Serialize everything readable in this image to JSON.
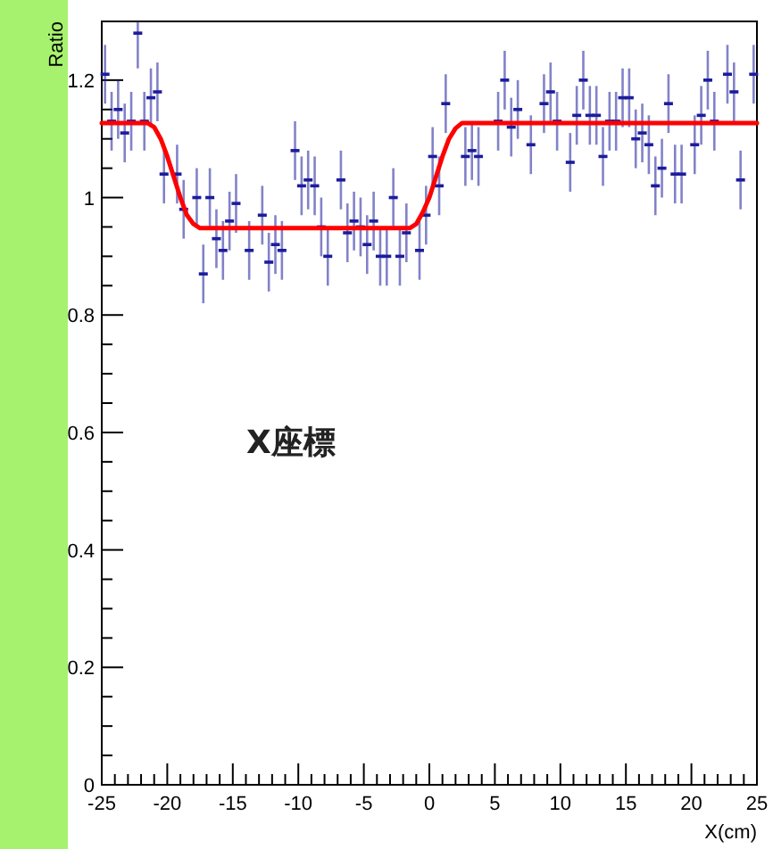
{
  "chart_data": {
    "type": "scatter",
    "xlabel": "X(cm)",
    "ylabel": "Ratio",
    "annotations": [
      "X座標"
    ],
    "xlim": [
      -25,
      25
    ],
    "ylim": [
      0,
      1.3
    ],
    "xticks": [
      -25,
      -20,
      -15,
      -10,
      -5,
      0,
      5,
      10,
      15,
      20,
      25
    ],
    "yticks": [
      0,
      0.2,
      0.4,
      0.6,
      0.8,
      1,
      1.2
    ],
    "grid": false,
    "series": [
      {
        "type": "scatter",
        "color": "#1c1c9c",
        "x": [
          -24.75,
          -24.25,
          -23.75,
          -23.25,
          -22.75,
          -22.25,
          -21.75,
          -21.25,
          -20.75,
          -20.25,
          -19.25,
          -18.75,
          -17.75,
          -17.25,
          -16.75,
          -16.25,
          -15.75,
          -15.25,
          -14.75,
          -13.75,
          -12.75,
          -12.25,
          -11.75,
          -11.25,
          -10.25,
          -9.75,
          -9.25,
          -8.75,
          -8.25,
          -7.75,
          -6.75,
          -6.25,
          -5.75,
          -5.25,
          -4.75,
          -4.25,
          -3.75,
          -3.25,
          -2.75,
          -2.25,
          -1.75,
          -0.75,
          -0.25,
          0.25,
          0.75,
          1.25,
          2.75,
          3.25,
          3.75,
          5.25,
          5.75,
          6.25,
          6.75,
          7.75,
          8.75,
          9.25,
          9.75,
          10.75,
          11.25,
          11.75,
          12.25,
          12.75,
          13.25,
          13.75,
          14.25,
          14.75,
          15.25,
          15.75,
          16.25,
          16.75,
          17.25,
          17.75,
          18.25,
          18.75,
          19.25,
          20.25,
          20.75,
          21.25,
          21.75,
          22.75,
          23.25,
          23.75,
          24.75
        ],
        "values": [
          1.21,
          1.13,
          1.15,
          1.11,
          1.13,
          1.28,
          1.13,
          1.17,
          1.18,
          1.04,
          1.04,
          0.98,
          1.0,
          0.87,
          1.0,
          0.93,
          0.91,
          0.96,
          0.99,
          0.91,
          0.97,
          0.89,
          0.92,
          0.91,
          1.08,
          1.02,
          1.03,
          1.02,
          0.95,
          0.9,
          1.03,
          0.94,
          0.96,
          0.95,
          0.92,
          0.96,
          0.9,
          0.9,
          1.0,
          0.9,
          0.94,
          0.91,
          0.97,
          1.07,
          1.02,
          1.16,
          1.07,
          1.08,
          1.07,
          1.13,
          1.2,
          1.12,
          1.15,
          1.09,
          1.16,
          1.18,
          1.13,
          1.06,
          1.14,
          1.2,
          1.14,
          1.14,
          1.07,
          1.13,
          1.13,
          1.17,
          1.17,
          1.1,
          1.11,
          1.09,
          1.02,
          1.05,
          1.16,
          1.04,
          1.04,
          1.09,
          1.14,
          1.2,
          1.13,
          1.21,
          1.18,
          1.03,
          1.21
        ],
        "errors": [
          0.05,
          0.05,
          0.05,
          0.05,
          0.05,
          [
            1.22,
            1.3
          ],
          0.05,
          0.05,
          0.05,
          0.05,
          0.05,
          0.05,
          0.05,
          0.05,
          0.05,
          0.05,
          0.05,
          0.05,
          0.05,
          0.05,
          0.05,
          0.05,
          0.05,
          0.05,
          0.05,
          0.05,
          0.05,
          0.05,
          0.05,
          0.05,
          0.05,
          0.05,
          0.05,
          0.05,
          0.05,
          0.05,
          0.05,
          0.05,
          0.05,
          0.05,
          0.05,
          0.05,
          0.05,
          0.05,
          0.05,
          0.05,
          0.05,
          0.05,
          0.05,
          0.05,
          0.05,
          0.05,
          0.05,
          0.05,
          0.05,
          0.05,
          0.05,
          0.05,
          0.05,
          0.05,
          0.05,
          0.05,
          0.05,
          0.05,
          0.05,
          0.05,
          0.05,
          0.05,
          0.05,
          0.05,
          0.05,
          0.05,
          0.05,
          0.05,
          0.05,
          0.05,
          0.05,
          0.05,
          0.05,
          0.05,
          0.05,
          0.05,
          0.05
        ]
      },
      {
        "type": "line",
        "color": "#ff0000",
        "x": [
          -25,
          -21.5,
          -21,
          -20.5,
          -20,
          -19.5,
          -19,
          -18.5,
          -18,
          -17.5,
          -1.5,
          -1,
          -0.5,
          0,
          0.5,
          1,
          1.5,
          2,
          2.5,
          25
        ],
        "values": [
          1.127,
          1.127,
          1.12,
          1.1,
          1.07,
          1.035,
          1.0,
          0.97,
          0.955,
          0.948,
          0.948,
          0.955,
          0.975,
          1.0,
          1.035,
          1.07,
          1.1,
          1.118,
          1.127,
          1.127
        ]
      }
    ]
  }
}
